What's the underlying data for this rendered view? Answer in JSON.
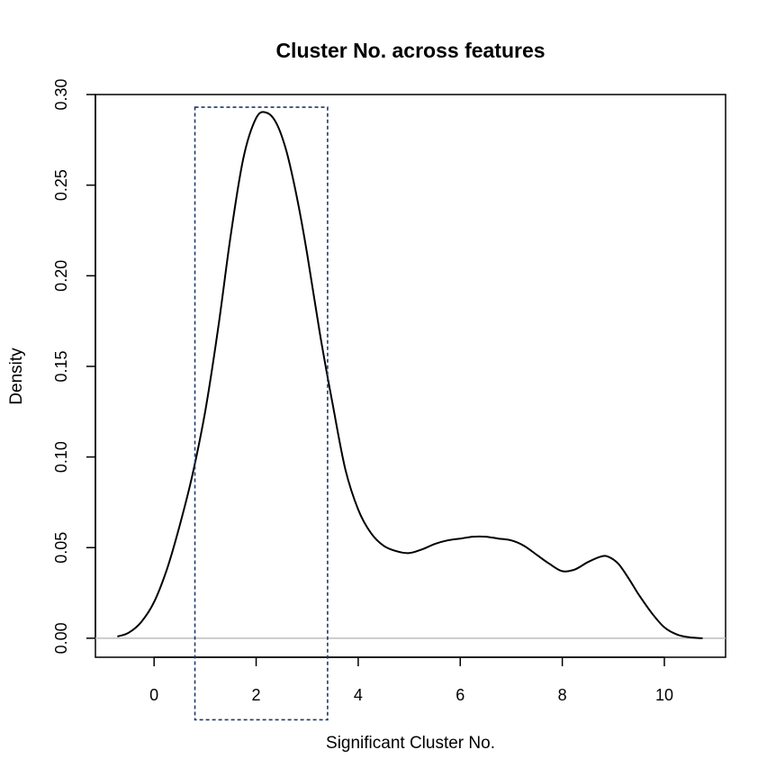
{
  "chart_data": {
    "type": "line",
    "title": "Cluster No. across features",
    "xlabel": "Significant Cluster No.",
    "ylabel": "Density",
    "xlim": [
      -1.15,
      11.2
    ],
    "ylim": [
      -0.0105,
      0.3
    ],
    "x_ticks": [
      0,
      2,
      4,
      6,
      8,
      10
    ],
    "y_ticks": [
      0.0,
      0.05,
      0.1,
      0.15,
      0.2,
      0.25,
      0.3
    ],
    "x_tick_labels": [
      "0",
      "2",
      "4",
      "6",
      "8",
      "10"
    ],
    "y_tick_labels": [
      "0.00",
      "0.05",
      "0.10",
      "0.15",
      "0.20",
      "0.25",
      "0.30"
    ],
    "grid": false,
    "baseline": {
      "y": 0,
      "color": "#bebebe"
    },
    "highlight_box": {
      "x_range": [
        0.8,
        3.4
      ],
      "y_range": [
        -0.045,
        0.293
      ],
      "color": "#1f3a66",
      "style": "dashed"
    },
    "series": [
      {
        "color": "#000000",
        "x": [
          -0.72,
          -0.5,
          -0.25,
          0.0,
          0.25,
          0.5,
          0.75,
          1.0,
          1.25,
          1.5,
          1.75,
          2.0,
          2.2,
          2.4,
          2.6,
          2.8,
          3.0,
          3.25,
          3.5,
          3.75,
          4.0,
          4.25,
          4.5,
          4.75,
          5.0,
          5.25,
          5.5,
          5.75,
          6.0,
          6.25,
          6.5,
          6.75,
          7.0,
          7.25,
          7.5,
          7.75,
          8.0,
          8.25,
          8.5,
          8.75,
          8.9,
          9.1,
          9.3,
          9.5,
          9.75,
          10.0,
          10.25,
          10.5,
          10.75
        ],
        "y": [
          0.001,
          0.003,
          0.009,
          0.02,
          0.038,
          0.062,
          0.09,
          0.125,
          0.17,
          0.222,
          0.265,
          0.287,
          0.29,
          0.284,
          0.268,
          0.243,
          0.212,
          0.168,
          0.129,
          0.093,
          0.071,
          0.058,
          0.051,
          0.048,
          0.047,
          0.049,
          0.052,
          0.054,
          0.055,
          0.056,
          0.056,
          0.055,
          0.054,
          0.051,
          0.046,
          0.041,
          0.037,
          0.038,
          0.042,
          0.045,
          0.045,
          0.041,
          0.033,
          0.024,
          0.014,
          0.006,
          0.002,
          0.0005,
          0.0
        ]
      }
    ]
  }
}
